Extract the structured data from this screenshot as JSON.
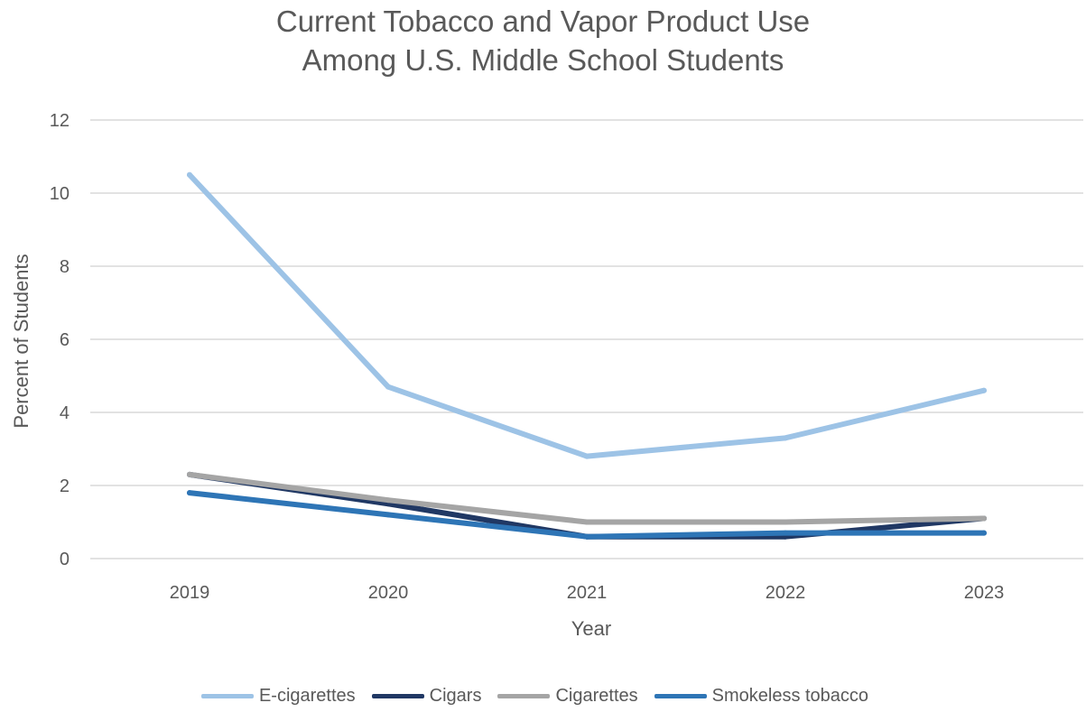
{
  "chart_data": {
    "type": "line",
    "title": [
      "Current Tobacco and Vapor Product Use",
      "Among U.S. Middle School Students"
    ],
    "xlabel": "Year",
    "ylabel": "Percent of Students",
    "categories": [
      "2019",
      "2020",
      "2021",
      "2022",
      "2023"
    ],
    "ylim": [
      0,
      12
    ],
    "yticks": [
      "0",
      "2",
      "4",
      "6",
      "8",
      "10",
      "12"
    ],
    "grid": true,
    "legend_position": "bottom",
    "series": [
      {
        "name": "E-cigarettes",
        "color": "#9DC3E6",
        "values": [
          10.5,
          4.7,
          2.8,
          3.3,
          4.6
        ]
      },
      {
        "name": "Cigars",
        "color": "#203864",
        "values": [
          2.3,
          1.5,
          0.6,
          0.6,
          1.1
        ]
      },
      {
        "name": "Cigarettes",
        "color": "#A5A5A5",
        "values": [
          2.3,
          1.6,
          1.0,
          1.0,
          1.1
        ]
      },
      {
        "name": "Smokeless tobacco",
        "color": "#2E75B6",
        "values": [
          1.8,
          1.2,
          0.6,
          0.7,
          0.7
        ]
      }
    ]
  }
}
